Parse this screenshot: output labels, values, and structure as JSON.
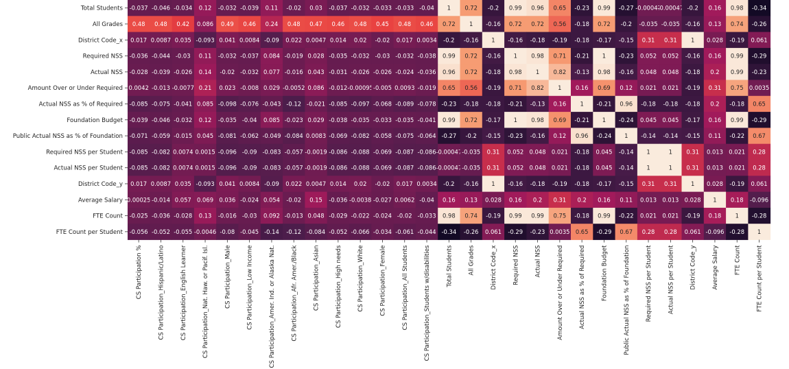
{
  "chart_data": {
    "type": "heatmap",
    "title": "",
    "colorscale": [
      "#03051a",
      "#4c1d4b",
      "#a11a5b",
      "#e83f3f",
      "#f69c73",
      "#faebdd"
    ],
    "vmin": -0.4,
    "vmax": 1.0,
    "rows": [
      "Total Students",
      "All Grades",
      "District Code_x",
      "Required NSS",
      "Actual NSS",
      "Amount Over or Under Required",
      "Actual NSS as % of Required",
      "Foundation Budget",
      "Public Actual NSS as % of Foundation",
      "Required NSS per Student",
      "Actual NSS per Student",
      "District Code_y",
      "Average Salary",
      "FTE Count",
      "FTE Count per Student"
    ],
    "columns": [
      "CS Participation %",
      "CS Participation_Hispanic/Latino",
      "CS Participation_English Learner",
      "CS Participation_Nat. Haw. or Pacif. Isl.",
      "CS Participation_Male",
      "CS Participation_Low Income",
      "CS Participation_Amer. Ind. or Alaska Nat.",
      "CS Participation_Afr. Amer./Black",
      "CS Participation_Asian",
      "CS Participation_High needs",
      "CS Participation_White",
      "CS Participation_Female",
      "CS Participation_All Students",
      "CS Participation_Students w/disabilities",
      "Total Students",
      "All Grades",
      "District Code_x",
      "Required NSS",
      "Actual NSS",
      "Amount Over or Under Required",
      "Actual NSS as % of Required",
      "Foundation Budget",
      "Public Actual NSS as % of Foundation",
      "Required NSS per Student",
      "Actual NSS per Student",
      "District Code_y",
      "Average Salary",
      "FTE Count",
      "FTE Count per Student"
    ],
    "values": [
      [
        -0.037,
        -0.046,
        -0.034,
        0.12,
        -0.032,
        -0.039,
        0.11,
        -0.02,
        0.03,
        -0.037,
        -0.032,
        -0.033,
        -0.033,
        -0.04,
        1,
        0.72,
        -0.2,
        0.99,
        0.96,
        0.65,
        -0.23,
        0.99,
        -0.27,
        -0.00047,
        -0.00047,
        -0.2,
        0.16,
        0.98,
        -0.34
      ],
      [
        0.48,
        0.48,
        0.42,
        0.086,
        0.49,
        0.46,
        0.24,
        0.48,
        0.47,
        0.46,
        0.48,
        0.45,
        0.48,
        0.46,
        0.72,
        1,
        -0.16,
        0.72,
        0.72,
        0.56,
        -0.18,
        0.72,
        -0.2,
        -0.035,
        -0.035,
        -0.16,
        0.13,
        0.74,
        -0.26
      ],
      [
        0.017,
        0.0087,
        0.035,
        -0.093,
        0.041,
        0.0084,
        -0.09,
        0.022,
        0.0047,
        0.014,
        0.02,
        -0.02,
        0.017,
        0.0034,
        -0.2,
        -0.16,
        1,
        -0.16,
        -0.18,
        -0.19,
        -0.18,
        -0.17,
        -0.15,
        0.31,
        0.31,
        1,
        0.028,
        -0.19,
        0.061
      ],
      [
        -0.036,
        -0.044,
        -0.03,
        0.11,
        -0.032,
        -0.037,
        0.084,
        -0.019,
        0.028,
        -0.035,
        -0.032,
        -0.03,
        -0.032,
        -0.038,
        0.99,
        0.72,
        -0.16,
        1,
        0.98,
        0.71,
        -0.21,
        1,
        -0.23,
        0.052,
        0.052,
        -0.16,
        0.16,
        0.99,
        -0.29
      ],
      [
        -0.028,
        -0.039,
        -0.026,
        0.14,
        -0.02,
        -0.032,
        0.077,
        -0.016,
        0.043,
        -0.031,
        -0.026,
        -0.026,
        -0.024,
        -0.036,
        0.96,
        0.72,
        -0.18,
        0.98,
        1,
        0.82,
        -0.13,
        0.98,
        -0.16,
        0.048,
        0.048,
        -0.18,
        0.2,
        0.99,
        -0.23
      ],
      [
        0.0042,
        -0.013,
        -0.0077,
        0.21,
        0.023,
        -0.008,
        0.029,
        -0.0052,
        0.086,
        -0.012,
        -0.00095,
        -0.005,
        0.0093,
        -0.019,
        0.65,
        0.56,
        -0.19,
        0.71,
        0.82,
        1,
        0.16,
        0.69,
        0.12,
        0.021,
        0.021,
        -0.19,
        0.31,
        0.75,
        0.0035
      ],
      [
        -0.085,
        -0.075,
        -0.041,
        0.085,
        -0.098,
        -0.076,
        -0.043,
        -0.12,
        -0.021,
        -0.085,
        -0.097,
        -0.068,
        -0.089,
        -0.078,
        -0.23,
        -0.18,
        -0.18,
        -0.21,
        -0.13,
        0.16,
        1,
        -0.21,
        0.96,
        -0.18,
        -0.18,
        -0.18,
        0.2,
        -0.18,
        0.65
      ],
      [
        -0.039,
        -0.046,
        -0.032,
        0.12,
        -0.035,
        -0.04,
        0.085,
        -0.023,
        0.029,
        -0.038,
        -0.035,
        -0.033,
        -0.035,
        -0.041,
        0.99,
        0.72,
        -0.17,
        1,
        0.98,
        0.69,
        -0.21,
        1,
        -0.24,
        0.045,
        0.045,
        -0.17,
        0.16,
        0.99,
        -0.29
      ],
      [
        -0.071,
        -0.059,
        -0.015,
        0.045,
        -0.081,
        -0.062,
        -0.049,
        -0.084,
        0.0083,
        -0.069,
        -0.082,
        -0.058,
        -0.075,
        -0.064,
        -0.27,
        -0.2,
        -0.15,
        -0.23,
        -0.16,
        0.12,
        0.96,
        -0.24,
        1,
        -0.14,
        -0.14,
        -0.15,
        0.11,
        -0.22,
        0.67
      ],
      [
        -0.085,
        -0.082,
        0.0074,
        0.0015,
        -0.096,
        -0.09,
        -0.083,
        -0.057,
        -0.0019,
        -0.086,
        -0.088,
        -0.069,
        -0.087,
        -0.086,
        -0.00047,
        -0.035,
        0.31,
        0.052,
        0.048,
        0.021,
        -0.18,
        0.045,
        -0.14,
        1,
        1,
        0.31,
        0.013,
        0.021,
        0.28
      ],
      [
        -0.085,
        -0.082,
        0.0074,
        0.0015,
        -0.096,
        -0.09,
        -0.083,
        -0.057,
        -0.0019,
        -0.086,
        -0.088,
        -0.069,
        -0.087,
        -0.086,
        -0.00047,
        -0.035,
        0.31,
        0.052,
        0.048,
        0.021,
        -0.18,
        0.045,
        -0.14,
        1,
        1,
        0.31,
        0.013,
        0.021,
        0.28
      ],
      [
        0.017,
        0.0087,
        0.035,
        -0.093,
        0.041,
        0.0084,
        -0.09,
        0.022,
        0.0047,
        0.014,
        0.02,
        -0.02,
        0.017,
        0.0034,
        -0.2,
        -0.16,
        1,
        -0.16,
        -0.18,
        -0.19,
        -0.18,
        -0.17,
        -0.15,
        0.31,
        0.31,
        1,
        0.028,
        -0.19,
        0.061
      ],
      [
        0.00025,
        -0.014,
        0.057,
        0.069,
        0.036,
        -0.024,
        0.054,
        -0.02,
        0.15,
        -0.036,
        -0.0038,
        -0.027,
        0.0062,
        -0.04,
        0.16,
        0.13,
        0.028,
        0.16,
        0.2,
        0.31,
        0.2,
        0.16,
        0.11,
        0.013,
        0.013,
        0.028,
        1,
        0.18,
        -0.096
      ],
      [
        -0.025,
        -0.036,
        -0.028,
        0.13,
        -0.016,
        -0.03,
        0.092,
        -0.013,
        0.048,
        -0.029,
        -0.022,
        -0.024,
        -0.02,
        -0.033,
        0.98,
        0.74,
        -0.19,
        0.99,
        0.99,
        0.75,
        -0.18,
        0.99,
        -0.22,
        0.021,
        0.021,
        -0.19,
        0.18,
        1,
        -0.28
      ],
      [
        -0.056,
        -0.052,
        -0.055,
        -0.0046,
        -0.08,
        -0.045,
        -0.14,
        -0.12,
        -0.084,
        -0.052,
        -0.066,
        -0.034,
        -0.061,
        -0.044,
        -0.34,
        -0.26,
        0.061,
        -0.29,
        -0.23,
        0.0035,
        0.65,
        -0.29,
        0.67,
        0.28,
        0.28,
        0.061,
        -0.096,
        -0.28,
        1
      ]
    ]
  }
}
